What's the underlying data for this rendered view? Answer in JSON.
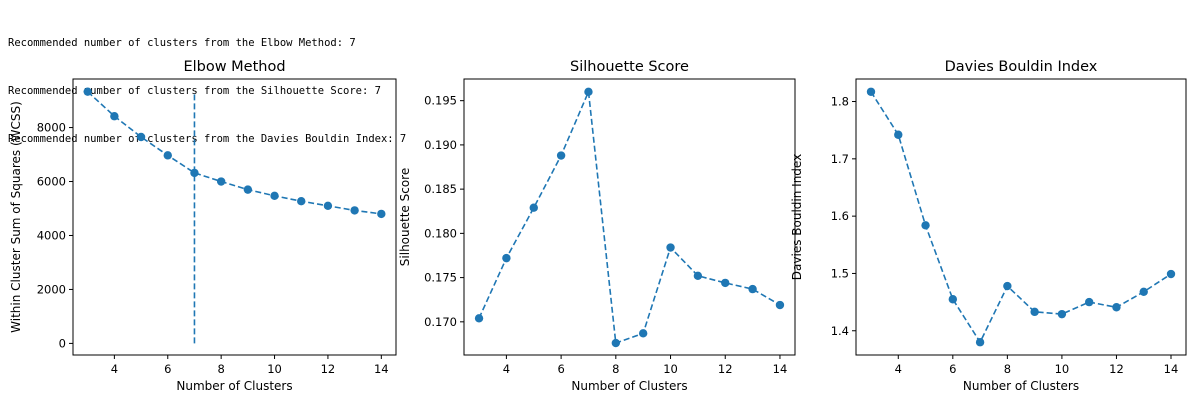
{
  "output_lines": [
    "Recommended number of clusters from the Elbow Method: 7",
    "Recommended number of clusters from the Silhouette Score: 7",
    "Recommended number of clusters from the Davies Bouldin Index: 7"
  ],
  "colors": {
    "series": "#1f77b4",
    "axis": "#000000"
  },
  "chart_data": [
    {
      "type": "line",
      "title": "Elbow Method",
      "xlabel": "Number of Clusters",
      "ylabel": "Within Cluster Sum of Squares (WCSS)",
      "x": [
        3,
        4,
        5,
        6,
        7,
        8,
        9,
        10,
        11,
        12,
        13,
        14
      ],
      "y": [
        9330,
        8420,
        7650,
        6970,
        6320,
        6000,
        5700,
        5470,
        5270,
        5100,
        4930,
        4800
      ],
      "xlim": [
        2.45,
        14.55
      ],
      "ylim": [
        -430,
        9800
      ],
      "xticks": [
        4,
        6,
        8,
        10,
        12,
        14
      ],
      "yticks": [
        0,
        2000,
        4000,
        6000,
        8000
      ],
      "vline": {
        "x": 7,
        "y0": 0,
        "y1": 9330
      },
      "line_style": "dashed",
      "grid": false
    },
    {
      "type": "line",
      "title": "Silhouette Score",
      "xlabel": "Number of Clusters",
      "ylabel": "Silhouette Score",
      "x": [
        3,
        4,
        5,
        6,
        7,
        8,
        9,
        10,
        11,
        12,
        13,
        14
      ],
      "y": [
        0.1704,
        0.1772,
        0.1829,
        0.1888,
        0.196,
        0.1676,
        0.1687,
        0.1784,
        0.1752,
        0.1744,
        0.1737,
        0.1719
      ],
      "xlim": [
        2.45,
        14.55
      ],
      "ylim": [
        0.16625,
        0.19745
      ],
      "xticks": [
        4,
        6,
        8,
        10,
        12,
        14
      ],
      "yticks": [
        "0.170",
        "0.175",
        "0.180",
        "0.185",
        "0.190",
        "0.195"
      ],
      "line_style": "dashed",
      "grid": false
    },
    {
      "type": "line",
      "title": "Davies Bouldin Index",
      "xlabel": "Number of Clusters",
      "ylabel": "Davies Bouldin Index",
      "x": [
        3,
        4,
        5,
        6,
        7,
        8,
        9,
        10,
        11,
        12,
        13,
        14
      ],
      "y": [
        1.817,
        1.742,
        1.584,
        1.455,
        1.38,
        1.478,
        1.433,
        1.429,
        1.45,
        1.441,
        1.468,
        1.499
      ],
      "xlim": [
        2.45,
        14.55
      ],
      "ylim": [
        1.3577,
        1.8393
      ],
      "xticks": [
        4,
        6,
        8,
        10,
        12,
        14
      ],
      "yticks": [
        "1.4",
        "1.5",
        "1.6",
        "1.7",
        "1.8"
      ],
      "line_style": "dashed",
      "grid": false
    }
  ]
}
